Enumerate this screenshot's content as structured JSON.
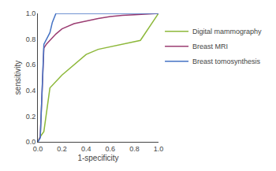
{
  "chart_data": {
    "type": "line",
    "xlabel": "1-specificity",
    "ylabel": "sensitivity",
    "xlim": [
      0.0,
      1.0
    ],
    "ylim": [
      0.0,
      1.0
    ],
    "xticks": [
      {
        "value": 0,
        "label": "0.0"
      },
      0.2,
      0.4,
      0.6,
      0.8,
      {
        "value": 1,
        "label": "1.0"
      }
    ],
    "yticks": [
      {
        "value": 0,
        "label": "0.0"
      },
      0.2,
      0.4,
      0.6,
      0.8,
      {
        "value": 1,
        "label": "1.0"
      }
    ],
    "grid": false,
    "legend": "right",
    "series": [
      {
        "name": "Digital mammography",
        "color": "#8db83a",
        "x": [
          0.0,
          0.02,
          0.05,
          0.1,
          0.2,
          0.3,
          0.4,
          0.5,
          0.6,
          0.7,
          0.8,
          0.85,
          1.0
        ],
        "values": [
          0.0,
          0.04,
          0.08,
          0.42,
          0.52,
          0.6,
          0.68,
          0.72,
          0.74,
          0.76,
          0.78,
          0.79,
          1.0
        ]
      },
      {
        "name": "Breast MRI",
        "color": "#9b3d72",
        "x": [
          0.0,
          0.02,
          0.05,
          0.07,
          0.1,
          0.15,
          0.2,
          0.3,
          0.4,
          0.5,
          0.6,
          0.7,
          0.8,
          0.9,
          1.0
        ],
        "values": [
          0.0,
          0.04,
          0.73,
          0.76,
          0.79,
          0.84,
          0.88,
          0.92,
          0.94,
          0.96,
          0.975,
          0.985,
          0.99,
          0.995,
          1.0
        ]
      },
      {
        "name": "Breast tomosynthesis",
        "color": "#4472c4",
        "x": [
          0.0,
          0.02,
          0.05,
          0.08,
          0.1,
          0.12,
          0.15,
          0.3,
          0.5,
          0.7,
          0.85,
          1.0
        ],
        "values": [
          0.0,
          0.03,
          0.76,
          0.82,
          0.85,
          0.93,
          1.0,
          1.0,
          1.0,
          1.0,
          1.0,
          1.0
        ]
      }
    ]
  }
}
